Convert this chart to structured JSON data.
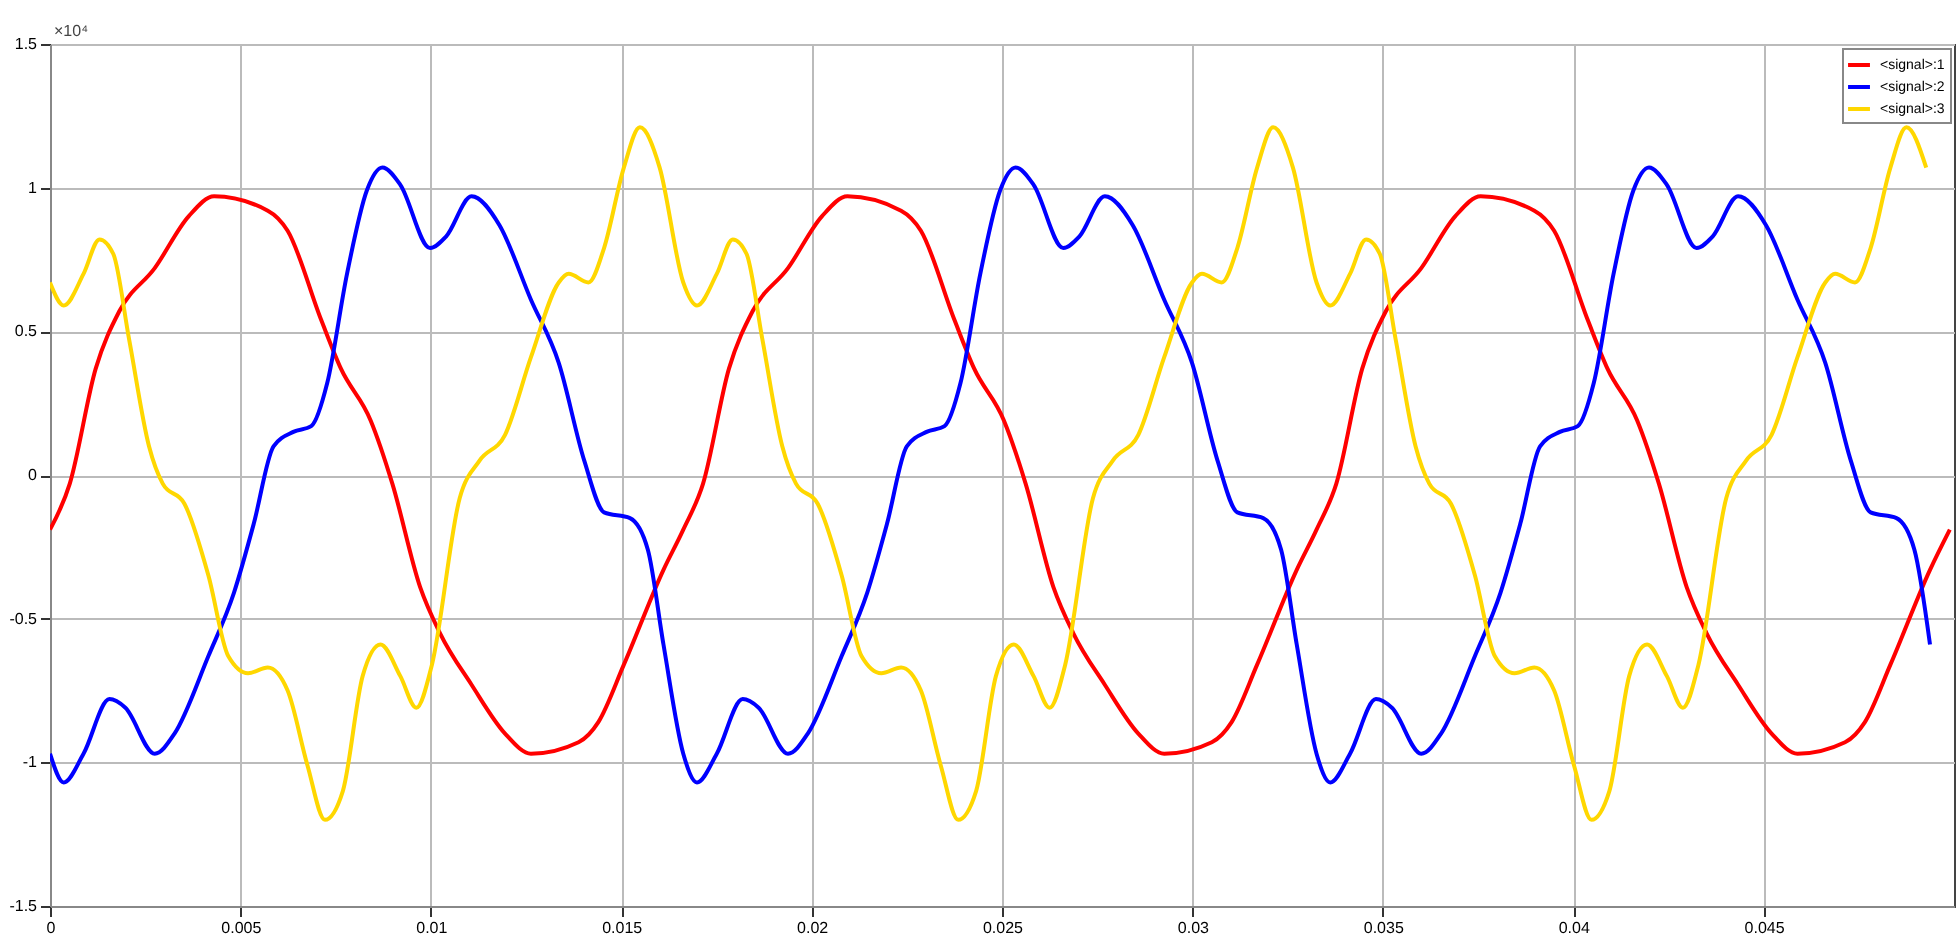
{
  "chart_data": {
    "type": "line",
    "xlim": [
      0,
      0.05
    ],
    "ylim": [
      -1.5,
      1.5
    ],
    "xticks": [
      0,
      0.005,
      0.01,
      0.015,
      0.02,
      0.025,
      0.03,
      0.035,
      0.04,
      0.045
    ],
    "yticks": [
      -1.5,
      -1,
      -0.5,
      0,
      0.5,
      1,
      1.5
    ],
    "grid": true,
    "legend": "top right",
    "line_style": "solid",
    "marker": "none",
    "annotations": [
      "×10⁴"
    ],
    "series": [
      {
        "name": "<signal>:1",
        "color": "#ff0000",
        "x": [
          0,
          0.00052,
          0.0012,
          0.00182,
          0.00275,
          0.00364,
          0.00431,
          0.00572,
          0.00624,
          0.00712,
          0.00764,
          0.00842,
          0.00899,
          0.00972,
          0.01024,
          0.01107,
          0.01195,
          0.01263,
          0.01388,
          0.0144,
          0.01507,
          0.01611,
          0.01663,
          0.01715,
          0.01783,
          0.01845,
          0.01938,
          0.02027,
          0.02094,
          0.02235,
          0.02287,
          0.02375,
          0.02427,
          0.02505,
          0.02562,
          0.02635,
          0.02687,
          0.0277,
          0.02858,
          0.02926,
          0.03051,
          0.03103,
          0.0317,
          0.03274,
          0.03326,
          0.03378,
          0.03446,
          0.03508,
          0.03601,
          0.0369,
          0.03757,
          0.03898,
          0.0395,
          0.04038,
          0.0409,
          0.04168,
          0.04225,
          0.04298,
          0.0435,
          0.04433,
          0.04521,
          0.04589,
          0.04714,
          0.04766,
          0.04833,
          0.04937,
          0.04989
        ],
        "values": [
          -0.19,
          -0.03,
          0.37,
          0.57,
          0.72,
          0.9,
          0.97,
          0.92,
          0.85,
          0.54,
          0.37,
          0.19,
          -0.03,
          -0.39,
          -0.55,
          -0.73,
          -0.9,
          -0.97,
          -0.93,
          -0.86,
          -0.66,
          -0.33,
          -0.19,
          -0.03,
          0.37,
          0.57,
          0.72,
          0.9,
          0.97,
          0.92,
          0.85,
          0.54,
          0.37,
          0.19,
          -0.03,
          -0.39,
          -0.55,
          -0.73,
          -0.9,
          -0.97,
          -0.93,
          -0.86,
          -0.66,
          -0.33,
          -0.19,
          -0.03,
          0.37,
          0.57,
          0.72,
          0.9,
          0.97,
          0.92,
          0.85,
          0.54,
          0.37,
          0.19,
          -0.03,
          -0.39,
          -0.55,
          -0.73,
          -0.9,
          -0.97,
          -0.93,
          -0.86,
          -0.66,
          -0.33,
          -0.19
        ]
      },
      {
        "name": "<signal>:2",
        "color": "#0000ff",
        "x": [
          0,
          0.00036,
          0.00088,
          0.00156,
          0.00198,
          0.00275,
          0.00327,
          0.00416,
          0.00483,
          0.00535,
          0.00587,
          0.00639,
          0.00686,
          0.00728,
          0.0078,
          0.00832,
          0.00873,
          0.0092,
          0.00998,
          0.0104,
          0.01107,
          0.0118,
          0.01263,
          0.01336,
          0.01403,
          0.01455,
          0.01523,
          0.0157,
          0.01611,
          0.01663,
          0.01699,
          0.01751,
          0.01819,
          0.01861,
          0.01938,
          0.0199,
          0.02079,
          0.02146,
          0.02198,
          0.0225,
          0.02302,
          0.02349,
          0.02391,
          0.02443,
          0.02495,
          0.02536,
          0.02583,
          0.02661,
          0.02703,
          0.0277,
          0.02843,
          0.02926,
          0.02999,
          0.03066,
          0.03118,
          0.03186,
          0.03233,
          0.03274,
          0.03326,
          0.03362,
          0.03414,
          0.03482,
          0.03524,
          0.03601,
          0.03653,
          0.03742,
          0.03809,
          0.03861,
          0.03913,
          0.03965,
          0.04012,
          0.04054,
          0.04106,
          0.04158,
          0.04199,
          0.04246,
          0.04324,
          0.04366,
          0.04433,
          0.04506,
          0.04589,
          0.04662,
          0.04729,
          0.04781,
          0.04849,
          0.04896,
          0.04937
        ],
        "values": [
          -0.97,
          -1.07,
          -0.97,
          -0.78,
          -0.81,
          -0.97,
          -0.9,
          -0.63,
          -0.41,
          -0.17,
          0.1,
          0.15,
          0.17,
          0.32,
          0.7,
          0.99,
          1.07,
          1.01,
          0.79,
          0.83,
          0.97,
          0.87,
          0.61,
          0.39,
          0.05,
          -0.13,
          -0.15,
          -0.26,
          -0.59,
          -0.97,
          -1.07,
          -0.97,
          -0.78,
          -0.81,
          -0.97,
          -0.9,
          -0.63,
          -0.41,
          -0.17,
          0.1,
          0.15,
          0.17,
          0.32,
          0.7,
          0.99,
          1.07,
          1.01,
          0.79,
          0.83,
          0.97,
          0.87,
          0.61,
          0.39,
          0.05,
          -0.13,
          -0.15,
          -0.26,
          -0.59,
          -0.97,
          -1.07,
          -0.97,
          -0.78,
          -0.81,
          -0.97,
          -0.9,
          -0.63,
          -0.41,
          -0.17,
          0.1,
          0.15,
          0.17,
          0.32,
          0.7,
          0.99,
          1.07,
          1.01,
          0.79,
          0.83,
          0.97,
          0.87,
          0.61,
          0.39,
          0.05,
          -0.13,
          -0.15,
          -0.26,
          -0.59
        ]
      },
      {
        "name": "<signal>:3",
        "color": "#ffd700",
        "x": [
          0,
          0.00036,
          0.00088,
          0.0013,
          0.00166,
          0.00208,
          0.0026,
          0.00296,
          0.00353,
          0.00416,
          0.00468,
          0.0052,
          0.00572,
          0.00624,
          0.00676,
          0.00722,
          0.00769,
          0.00821,
          0.00868,
          0.0092,
          0.00962,
          0.01003,
          0.01076,
          0.01128,
          0.01195,
          0.01263,
          0.01336,
          0.01362,
          0.01414,
          0.01455,
          0.01507,
          0.01549,
          0.01601,
          0.01663,
          0.01699,
          0.01751,
          0.01793,
          0.01829,
          0.01871,
          0.01923,
          0.01959,
          0.02016,
          0.02079,
          0.02131,
          0.02183,
          0.02235,
          0.02287,
          0.02339,
          0.02385,
          0.02432,
          0.02484,
          0.02531,
          0.02583,
          0.02625,
          0.02666,
          0.02739,
          0.02791,
          0.02858,
          0.02926,
          0.02999,
          0.03025,
          0.03077,
          0.03118,
          0.0317,
          0.03212,
          0.03264,
          0.03326,
          0.03362,
          0.03414,
          0.03456,
          0.03492,
          0.03534,
          0.03586,
          0.03622,
          0.03679,
          0.03742,
          0.03794,
          0.03846,
          0.03898,
          0.0395,
          0.04002,
          0.04048,
          0.04095,
          0.04147,
          0.04194,
          0.04246,
          0.04288,
          0.04329,
          0.04402,
          0.04454,
          0.04521,
          0.04589,
          0.04662,
          0.04688,
          0.0474,
          0.04781,
          0.04833,
          0.04875,
          0.04927
        ],
        "values": [
          0.67,
          0.59,
          0.7,
          0.82,
          0.77,
          0.47,
          0.1,
          -0.03,
          -0.1,
          -0.35,
          -0.63,
          -0.69,
          -0.67,
          -0.75,
          -1.01,
          -1.2,
          -1.1,
          -0.7,
          -0.59,
          -0.7,
          -0.81,
          -0.66,
          -0.08,
          0.05,
          0.14,
          0.41,
          0.67,
          0.7,
          0.67,
          0.79,
          1.07,
          1.21,
          1.07,
          0.67,
          0.59,
          0.7,
          0.82,
          0.77,
          0.47,
          0.1,
          -0.03,
          -0.1,
          -0.35,
          -0.63,
          -0.69,
          -0.67,
          -0.75,
          -1.01,
          -1.2,
          -1.1,
          -0.7,
          -0.59,
          -0.7,
          -0.81,
          -0.66,
          -0.08,
          0.05,
          0.14,
          0.41,
          0.67,
          0.7,
          0.67,
          0.79,
          1.07,
          1.21,
          1.07,
          0.67,
          0.59,
          0.7,
          0.82,
          0.77,
          0.47,
          0.1,
          -0.03,
          -0.1,
          -0.35,
          -0.63,
          -0.69,
          -0.67,
          -0.75,
          -1.01,
          -1.2,
          -1.1,
          -0.7,
          -0.59,
          -0.7,
          -0.81,
          -0.66,
          -0.08,
          0.05,
          0.14,
          0.41,
          0.67,
          0.7,
          0.67,
          0.79,
          1.07,
          1.21,
          1.07
        ]
      }
    ]
  }
}
